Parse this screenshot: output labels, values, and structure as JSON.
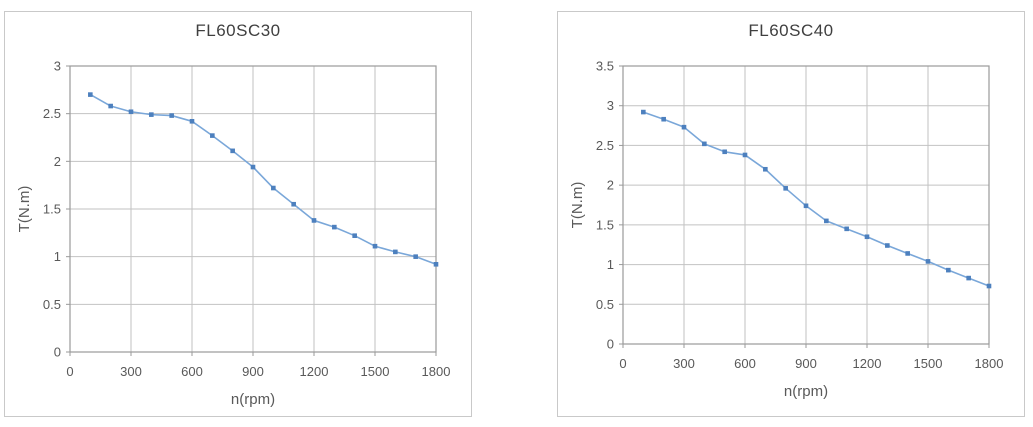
{
  "page": {
    "background": "#ffffff"
  },
  "colors": {
    "panel_border": "#c9c9c9",
    "plot_border": "#9a9a9a",
    "gridline": "#c2c2c2",
    "tick": "#9a9a9a",
    "tick_label": "#595959",
    "axis_title": "#595959",
    "chart_title": "#3f3f3f",
    "line": "#7aa7d9",
    "marker": "#4d80be"
  },
  "chart_data": [
    {
      "type": "line",
      "title": "FL60SC30",
      "xlabel": "n(rpm)",
      "ylabel": "T(N.m)",
      "x": [
        100,
        200,
        300,
        400,
        500,
        600,
        700,
        800,
        900,
        1000,
        1100,
        1200,
        1300,
        1400,
        1500,
        1600,
        1700,
        1800
      ],
      "y": [
        2.7,
        2.58,
        2.52,
        2.49,
        2.48,
        2.42,
        2.27,
        2.11,
        1.94,
        1.72,
        1.55,
        1.38,
        1.31,
        1.22,
        1.11,
        1.05,
        1.0,
        0.92
      ],
      "xlim": [
        0,
        1800
      ],
      "ylim": [
        0,
        3
      ],
      "x_ticks": [
        0,
        300,
        600,
        900,
        1200,
        1500,
        1800
      ],
      "y_ticks": [
        0,
        0.5,
        1,
        1.5,
        2,
        2.5,
        3
      ],
      "grid": true,
      "legend": false,
      "marker": "square"
    },
    {
      "type": "line",
      "title": "FL60SC40",
      "xlabel": "n(rpm)",
      "ylabel": "T(N.m)",
      "x": [
        100,
        200,
        300,
        400,
        500,
        600,
        700,
        800,
        900,
        1000,
        1100,
        1200,
        1300,
        1400,
        1500,
        1600,
        1700,
        1800
      ],
      "y": [
        2.92,
        2.83,
        2.73,
        2.52,
        2.42,
        2.38,
        2.2,
        1.96,
        1.74,
        1.55,
        1.45,
        1.35,
        1.24,
        1.14,
        1.04,
        0.93,
        0.83,
        0.73
      ],
      "xlim": [
        0,
        1800
      ],
      "ylim": [
        0,
        3.5
      ],
      "x_ticks": [
        0,
        300,
        600,
        900,
        1200,
        1500,
        1800
      ],
      "y_ticks": [
        0,
        0.5,
        1,
        1.5,
        2,
        2.5,
        3,
        3.5
      ],
      "grid": true,
      "legend": false,
      "marker": "square"
    }
  ]
}
